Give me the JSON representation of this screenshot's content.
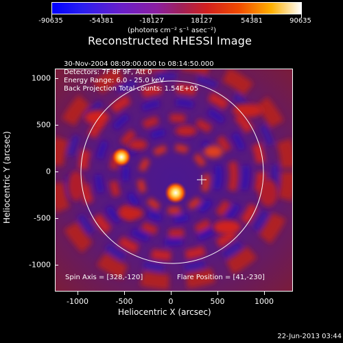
{
  "colorbar": {
    "ticks": [
      "-90635",
      "-54381",
      "-18127",
      "18127",
      "54381",
      "90635"
    ],
    "units": "(photons cm⁻² s⁻¹ asec⁻²)"
  },
  "title": "Reconstructed RHESSI Image",
  "annotations": {
    "time_range": "30-Nov-2004 08:09:00.000 to 08:14:50.000",
    "detectors": "Detectors: 7F 8F 9F, Att 0",
    "energy_range": "Energy Range: 6.0 - 25.0 keV",
    "method_counts": "Back Projection    Total counts: 1.54E+05",
    "spin_axis": "Spin Axis = [328,-120]",
    "flare_position": "Flare Position = [41,-230]"
  },
  "axes": {
    "xlabel": "Heliocentric X (arcsec)",
    "ylabel": "Heliocentric Y (arcsec)",
    "xticks": [
      "-1000",
      "-500",
      "0",
      "500",
      "1000"
    ],
    "yticks": [
      "1000",
      "500",
      "0",
      "-500",
      "-1000"
    ]
  },
  "footer": "22-Jun-2013 03:44",
  "colors": {
    "background": "#000000",
    "solar_limb": "#ffffff",
    "flare_core": "#ffffff",
    "hot": "#ffb000",
    "mid_red": "#d1201f",
    "low_purple": "#6a1fc9",
    "negative_blue": "#0000ff"
  }
}
